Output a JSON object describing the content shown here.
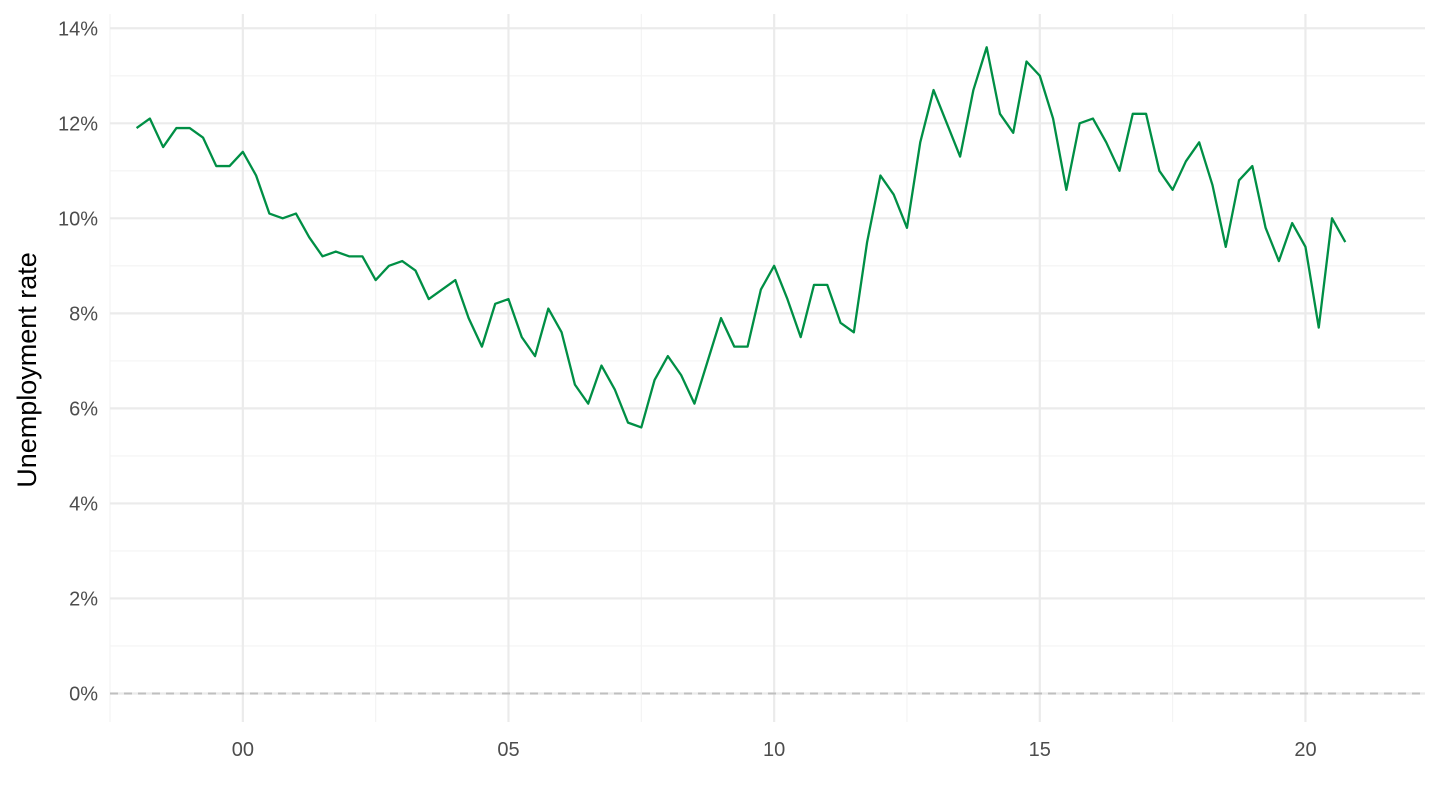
{
  "chart_data": {
    "type": "line",
    "title": "",
    "xlabel": "",
    "ylabel": "Unemployment rate",
    "x_is_quarterly": true,
    "xlim": [
      1997.5,
      2022.25
    ],
    "ylim": [
      -0.6,
      14.3
    ],
    "x_ticks": [
      2000,
      2005,
      2010,
      2015,
      2020
    ],
    "x_tick_labels": [
      "00",
      "05",
      "10",
      "15",
      "20"
    ],
    "y_ticks": [
      0,
      2,
      4,
      6,
      8,
      10,
      12,
      14
    ],
    "y_tick_labels": [
      "0%",
      "2%",
      "4%",
      "6%",
      "8%",
      "10%",
      "12%",
      "14%"
    ],
    "y_format": "percent",
    "grid": true,
    "reference_line": {
      "y": 0,
      "style": "dashed"
    },
    "colors": {
      "line": "#008F45",
      "grid_major": "#ebebeb",
      "grid_minor": "#f3f3f3",
      "reference": "#bfbfbf"
    },
    "series": [
      {
        "start_year": 1998,
        "start_quarter": 1,
        "values": [
          11.9,
          12.1,
          11.5,
          11.9,
          11.9,
          11.7,
          11.1,
          11.1,
          11.4,
          10.9,
          10.1,
          10.0,
          10.1,
          9.6,
          9.2,
          9.3,
          9.2,
          9.2,
          8.7,
          9.0,
          9.1,
          8.9,
          8.3,
          8.5,
          8.7,
          7.9,
          7.3,
          8.2,
          8.3,
          7.5,
          7.1,
          8.1,
          7.6,
          6.5,
          6.1,
          6.9,
          6.4,
          5.7,
          5.6,
          6.6,
          7.1,
          6.7,
          6.1,
          7.0,
          7.9,
          7.3,
          7.3,
          8.5,
          9.0,
          8.3,
          7.5,
          8.6,
          8.6,
          7.8,
          7.6,
          9.5,
          10.9,
          10.5,
          9.8,
          11.6,
          12.7,
          12.0,
          11.3,
          12.7,
          13.6,
          12.2,
          11.8,
          13.3,
          13.0,
          12.1,
          10.6,
          12.0,
          12.1,
          11.6,
          11.0,
          12.2,
          12.2,
          11.0,
          10.6,
          11.2,
          11.6,
          10.7,
          9.4,
          10.8,
          11.1,
          9.8,
          9.1,
          9.9,
          9.4,
          7.7,
          10.0,
          9.5
        ]
      }
    ]
  }
}
